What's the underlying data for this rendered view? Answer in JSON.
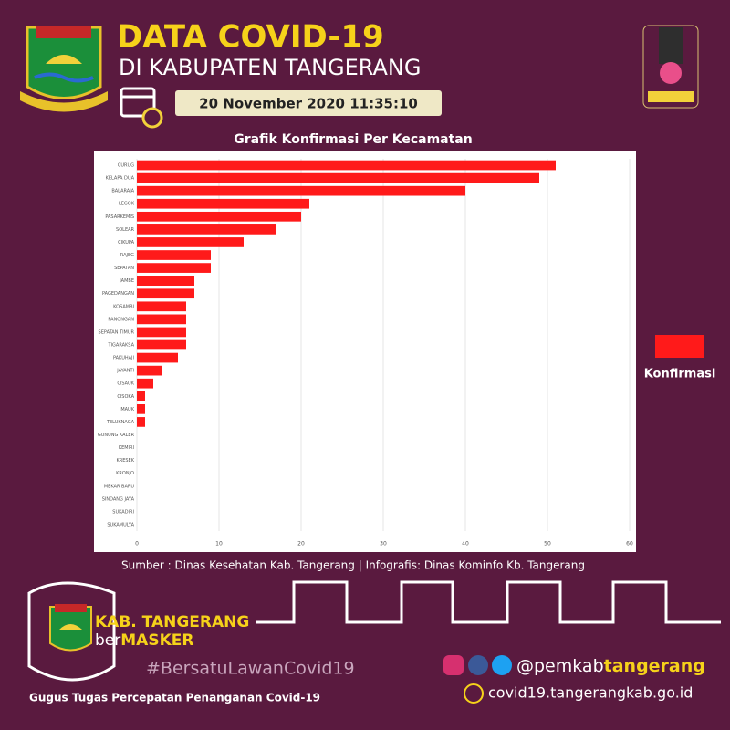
{
  "header": {
    "title": "DATA COVID-19",
    "subtitle": "DI KABUPATEN TANGERANG",
    "datetime": "20 November 2020 11:35:10"
  },
  "chart_data": {
    "type": "barh",
    "title": "Grafik Konfirmasi Per Kecamatan",
    "categories": [
      "CURUG",
      "KELAPA DUA",
      "BALARAJA",
      "LEGOK",
      "PASARKEMIS",
      "SOLEAR",
      "CIKUPA",
      "RAJEG",
      "SEPATAN",
      "JAMBE",
      "PAGEDANGAN",
      "KOSAMBI",
      "PANONGAN",
      "SEPATAN TIMUR",
      "TIGARAKSA",
      "PAKUHAJI",
      "JAYANTI",
      "CISAUK",
      "CISOKA",
      "MAUK",
      "TELUKNAGA",
      "GUNUNG KALER",
      "KEMIRI",
      "KRESEK",
      "KRONJO",
      "MEKAR BARU",
      "SINDANG JAYA",
      "SUKADIRI",
      "SUKAMULYA"
    ],
    "series": [
      {
        "name": "Konfirmasi",
        "color": "#ff1a1a",
        "values": [
          51,
          49,
          40,
          21,
          20,
          17,
          13,
          9,
          9,
          7,
          7,
          6,
          6,
          6,
          6,
          5,
          3,
          2,
          1,
          1,
          1,
          0,
          0,
          0,
          0,
          0,
          0,
          0,
          0
        ]
      }
    ],
    "xlim": [
      0,
      60
    ],
    "xticks": [
      0,
      10,
      20,
      30,
      40,
      50,
      60
    ],
    "grid": true,
    "legend": "right"
  },
  "footer": {
    "source": "Sumber : Dinas Kesehatan Kab. Tangerang | Infografis: Dinas Kominfo Kb. Tangerang",
    "brand_1": "KAB. TANGERANG",
    "brand_2a": "ber",
    "brand_2b": "MASKER",
    "hashtag": "#BersatuLawanCovid19",
    "task_force": "Gugus Tugas Percepatan Penanganan Covid-19",
    "handle_a": "@pemkab",
    "handle_b": "tangerang",
    "website": "covid19.tangerangkab.go.id"
  }
}
